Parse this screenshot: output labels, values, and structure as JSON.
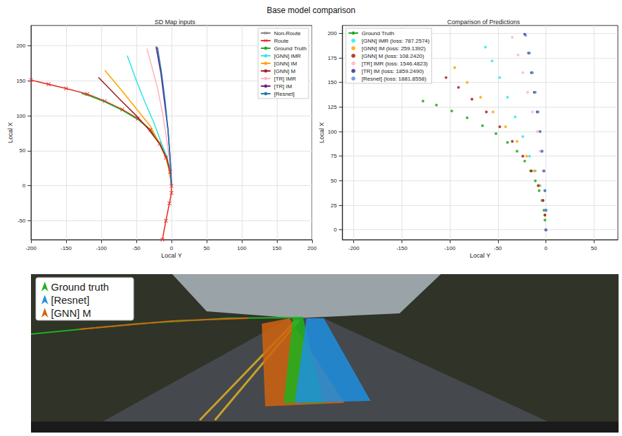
{
  "title": "Base model comparison",
  "chart_data": [
    {
      "type": "line",
      "title": "SD Map inputs",
      "x_label": "Local Y",
      "y_label": "Local X",
      "xlim": [
        -200,
        200
      ],
      "xticks": [
        -200,
        -150,
        -100,
        -50,
        0,
        50,
        100,
        150,
        200
      ],
      "ylim": [
        -77,
        229
      ],
      "yticks": [
        -50,
        0,
        50,
        100,
        150,
        200
      ],
      "grid": true,
      "legend": "upper right",
      "marker": "none",
      "line_style": "solid",
      "series": [
        {
          "name": "Non-Route",
          "color": "#808080",
          "marker": "x",
          "values": []
        },
        {
          "name": "Route",
          "color": "#e8302a",
          "marker": "x",
          "values": [
            [
              -13,
              -77
            ],
            [
              -8,
              -50
            ],
            [
              -3,
              -25
            ],
            [
              0,
              -10
            ],
            [
              0,
              0
            ],
            [
              -2,
              20
            ],
            [
              -8,
              40
            ],
            [
              -17,
              60
            ],
            [
              -30,
              80
            ],
            [
              -48,
              96
            ],
            [
              -70,
              109
            ],
            [
              -95,
              121
            ],
            [
              -120,
              131
            ],
            [
              -150,
              139
            ],
            [
              -175,
              145
            ],
            [
              -200,
              151
            ]
          ]
        },
        {
          "name": "Ground Truth",
          "color": "#22a822",
          "values": [
            [
              0,
              0
            ],
            [
              -2,
              20
            ],
            [
              -7,
              40
            ],
            [
              -16,
              60
            ],
            [
              -30,
              80
            ],
            [
              -48,
              95
            ],
            [
              -70,
              108
            ],
            [
              -95,
              120
            ],
            [
              -115,
              128
            ],
            [
              -128,
              132
            ]
          ]
        },
        {
          "name": "[GNN] IMR",
          "color": "#33e6e6",
          "values": [
            [
              0,
              0
            ],
            [
              -2,
              20
            ],
            [
              -6,
              40
            ],
            [
              -14,
              60
            ],
            [
              -25,
              90
            ],
            [
              -38,
              120
            ],
            [
              -50,
              150
            ],
            [
              -63,
              186
            ]
          ]
        },
        {
          "name": "[GNN] IM",
          "color": "#ffa500",
          "values": [
            [
              0,
              0
            ],
            [
              -3,
              20
            ],
            [
              -8,
              40
            ],
            [
              -17,
              60
            ],
            [
              -30,
              85
            ],
            [
              -50,
              110
            ],
            [
              -70,
              135
            ],
            [
              -95,
              165
            ]
          ]
        },
        {
          "name": "[GNN] M",
          "color": "#a51e1e",
          "values": [
            [
              0,
              0
            ],
            [
              -2,
              20
            ],
            [
              -7,
              40
            ],
            [
              -17,
              60
            ],
            [
              -32,
              80
            ],
            [
              -50,
              100
            ],
            [
              -75,
              125
            ],
            [
              -104,
              155
            ]
          ]
        },
        {
          "name": "[TR] IMR",
          "color": "#ffb6c1",
          "values": [
            [
              0,
              0
            ],
            [
              -2,
              30
            ],
            [
              -6,
              60
            ],
            [
              -12,
              100
            ],
            [
              -20,
              140
            ],
            [
              -28,
              170
            ],
            [
              -35,
              196
            ]
          ]
        },
        {
          "name": "[TR] IM",
          "color": "#6a1f7a",
          "values": [
            [
              0,
              0
            ],
            [
              -2,
              40
            ],
            [
              -5,
              80
            ],
            [
              -10,
              120
            ],
            [
              -15,
              160
            ],
            [
              -22,
              199
            ]
          ]
        },
        {
          "name": "[Resnet]",
          "color": "#1f77b4",
          "values": [
            [
              0,
              0
            ],
            [
              -2,
              40
            ],
            [
              -5,
              80
            ],
            [
              -9,
              120
            ],
            [
              -14,
              160
            ],
            [
              -20,
              198
            ]
          ]
        }
      ]
    },
    {
      "type": "scatter",
      "title": "Comparison of Predictions",
      "x_label": "Local Y",
      "y_label": "Local X",
      "xlim": [
        -212,
        75
      ],
      "xticks": [
        -200,
        -150,
        -100,
        -50,
        0,
        50
      ],
      "ylim": [
        -10,
        208
      ],
      "yticks": [
        0,
        25,
        50,
        75,
        100,
        125,
        150,
        175,
        200
      ],
      "grid": true,
      "legend": "upper left",
      "marker": "o",
      "line_style": "none",
      "series": [
        {
          "name": "Ground Truth",
          "color": "#22a822",
          "values": [
            [
              0,
              0
            ],
            [
              -1,
              10
            ],
            [
              -2,
              20
            ],
            [
              -4,
              30
            ],
            [
              -7,
              40
            ],
            [
              -11,
              50
            ],
            [
              -16,
              60
            ],
            [
              -22,
              70
            ],
            [
              -30,
              80
            ],
            [
              -40,
              89
            ],
            [
              -52,
              98
            ],
            [
              -66,
              106
            ],
            [
              -82,
              114
            ],
            [
              -98,
              121
            ],
            [
              -114,
              127
            ],
            [
              -128,
              131
            ]
          ]
        },
        {
          "name": "[GNN] IMR (loss: 787.2574)",
          "color": "#33e6e6",
          "values": [
            [
              0,
              0
            ],
            [
              -1,
              15
            ],
            [
              -3,
              30
            ],
            [
              -6,
              45
            ],
            [
              -11,
              60
            ],
            [
              -17,
              75
            ],
            [
              -24,
              95
            ],
            [
              -32,
              115
            ],
            [
              -40,
              135
            ],
            [
              -48,
              155
            ],
            [
              -56,
              172
            ],
            [
              -63,
              186
            ]
          ]
        },
        {
          "name": "[GNN] IM (loss: 259.1392)",
          "color": "#ffa500",
          "values": [
            [
              0,
              0
            ],
            [
              -1,
              15
            ],
            [
              -3,
              30
            ],
            [
              -7,
              45
            ],
            [
              -12,
              60
            ],
            [
              -20,
              75
            ],
            [
              -30,
              90
            ],
            [
              -42,
              105
            ],
            [
              -55,
              120
            ],
            [
              -68,
              135
            ],
            [
              -82,
              150
            ],
            [
              -95,
              165
            ]
          ]
        },
        {
          "name": "[GNN] M (loss: 108.2420)",
          "color": "#a51e1e",
          "values": [
            [
              0,
              0
            ],
            [
              -1,
              15
            ],
            [
              -3,
              30
            ],
            [
              -8,
              45
            ],
            [
              -15,
              60
            ],
            [
              -24,
              75
            ],
            [
              -35,
              90
            ],
            [
              -48,
              105
            ],
            [
              -62,
              120
            ],
            [
              -77,
              133
            ],
            [
              -91,
              145
            ],
            [
              -104,
              155
            ]
          ]
        },
        {
          "name": "[TR] IMR (loss: 1546.4823)",
          "color": "#ffb6c1",
          "values": [
            [
              0,
              0
            ],
            [
              0,
              20
            ],
            [
              -1,
              40
            ],
            [
              -3,
              60
            ],
            [
              -6,
              80
            ],
            [
              -9,
              100
            ],
            [
              -14,
              120
            ],
            [
              -19,
              140
            ],
            [
              -24,
              160
            ],
            [
              -29,
              178
            ],
            [
              -35,
              196
            ]
          ]
        },
        {
          "name": "[TR] IM (loss: 1859.2490)",
          "color": "#3b2b8c",
          "values": [
            [
              0,
              0
            ],
            [
              0,
              20
            ],
            [
              -1,
              40
            ],
            [
              -2,
              60
            ],
            [
              -4,
              80
            ],
            [
              -6,
              100
            ],
            [
              -9,
              120
            ],
            [
              -12,
              140
            ],
            [
              -15,
              160
            ],
            [
              -18,
              180
            ],
            [
              -22,
              199
            ]
          ]
        },
        {
          "name": "[Resnet] (loss: 1881.8558)",
          "color": "#5b8fd8",
          "values": [
            [
              0,
              0
            ],
            [
              0,
              20
            ],
            [
              -1,
              40
            ],
            [
              -2,
              60
            ],
            [
              -4,
              80
            ],
            [
              -6,
              100
            ],
            [
              -8,
              120
            ],
            [
              -11,
              140
            ],
            [
              -14,
              160
            ],
            [
              -17,
              180
            ],
            [
              -21,
              198
            ]
          ]
        }
      ]
    }
  ],
  "photo_legend": [
    {
      "name": "Ground truth",
      "color": "#1db31d"
    },
    {
      "name": "[Resnet]",
      "color": "#1f8fe0"
    },
    {
      "name": "[GNN] M",
      "color": "#d0640f"
    }
  ]
}
